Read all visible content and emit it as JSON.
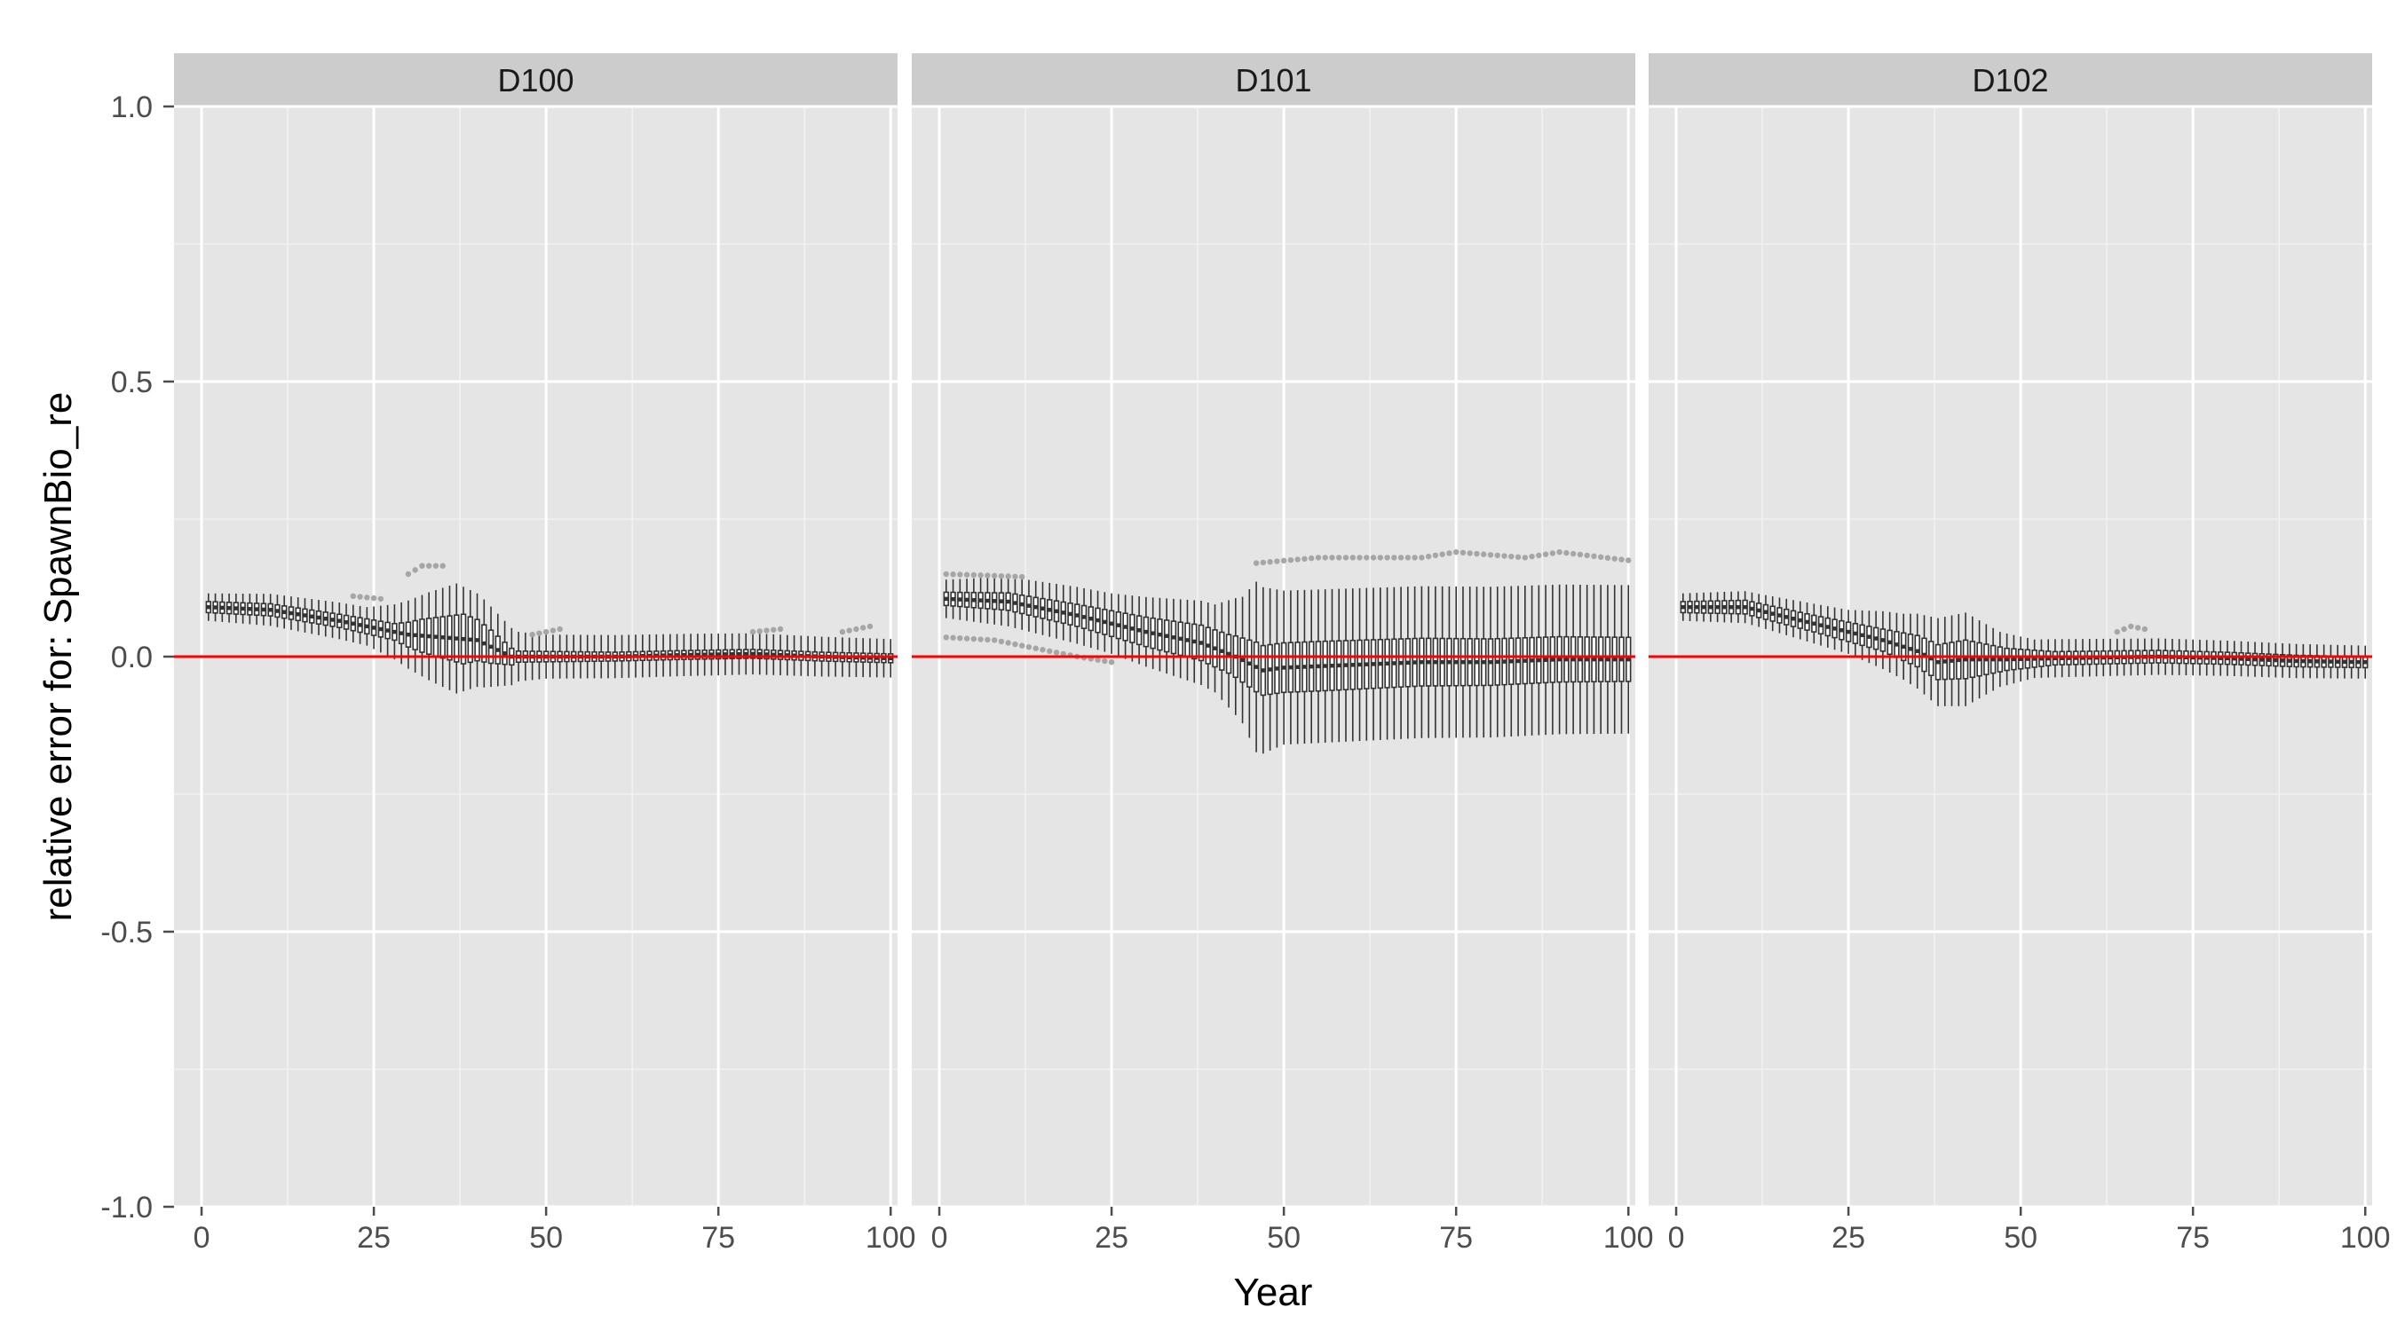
{
  "chart_data": {
    "type": "boxplot",
    "xlabel": "Year",
    "ylabel": "relative error for: SpawnBio_re",
    "ylim": [
      -1.0,
      1.0
    ],
    "y_ticks": [
      "-1.0",
      "-0.5",
      "0.0",
      "0.5",
      "1.0"
    ],
    "y_tick_values": [
      -1.0,
      -0.5,
      0.0,
      0.5,
      1.0
    ],
    "xlim": [
      -4,
      101
    ],
    "x_ticks": [
      "0",
      "25",
      "50",
      "75",
      "100"
    ],
    "x_tick_values": [
      0,
      25,
      50,
      75,
      100
    ],
    "reference_line": {
      "y": 0.0,
      "color": "#ff0000"
    },
    "grid": true,
    "panels": [
      {
        "label": "D100",
        "x_range": [
          1,
          100
        ],
        "median_pts": [
          [
            1,
            0.09
          ],
          [
            10,
            0.085
          ],
          [
            20,
            0.065
          ],
          [
            30,
            0.04
          ],
          [
            35,
            0.035
          ],
          [
            40,
            0.03
          ],
          [
            45,
            0.0
          ],
          [
            50,
            0.0
          ],
          [
            60,
            0.0
          ],
          [
            70,
            0.003
          ],
          [
            80,
            0.005
          ],
          [
            90,
            0.0
          ],
          [
            100,
            -0.003
          ]
        ],
        "q_half_pts": [
          [
            1,
            0.01
          ],
          [
            20,
            0.012
          ],
          [
            28,
            0.015
          ],
          [
            32,
            0.03
          ],
          [
            38,
            0.045
          ],
          [
            42,
            0.03
          ],
          [
            46,
            0.01
          ],
          [
            60,
            0.008
          ],
          [
            100,
            0.008
          ]
        ],
        "w_half_pts": [
          [
            1,
            0.025
          ],
          [
            12,
            0.03
          ],
          [
            24,
            0.035
          ],
          [
            28,
            0.05
          ],
          [
            33,
            0.08
          ],
          [
            37,
            0.1
          ],
          [
            41,
            0.08
          ],
          [
            46,
            0.045
          ],
          [
            50,
            0.04
          ],
          [
            75,
            0.038
          ],
          [
            100,
            0.035
          ]
        ],
        "outliers": [
          {
            "x_range": [
              22,
              26
            ],
            "y_pts": [
              [
                22,
                0.11
              ],
              [
                26,
                0.105
              ]
            ]
          },
          {
            "x_range": [
              30,
              35
            ],
            "y_pts": [
              [
                30,
                0.15
              ],
              [
                32,
                0.165
              ],
              [
                35,
                0.165
              ]
            ]
          },
          {
            "x_range": [
              48,
              52
            ],
            "y_pts": [
              [
                48,
                0.04
              ],
              [
                52,
                0.05
              ]
            ]
          },
          {
            "x_range": [
              80,
              84
            ],
            "y_pts": [
              [
                80,
                0.045
              ],
              [
                84,
                0.05
              ]
            ]
          },
          {
            "x_range": [
              93,
              97
            ],
            "y_pts": [
              [
                93,
                0.045
              ],
              [
                97,
                0.055
              ]
            ]
          }
        ]
      },
      {
        "label": "D101",
        "x_range": [
          1,
          100
        ],
        "median_pts": [
          [
            1,
            0.105
          ],
          [
            10,
            0.1
          ],
          [
            20,
            0.075
          ],
          [
            30,
            0.045
          ],
          [
            38,
            0.025
          ],
          [
            43,
            0.0
          ],
          [
            47,
            -0.025
          ],
          [
            50,
            -0.02
          ],
          [
            60,
            -0.015
          ],
          [
            70,
            -0.01
          ],
          [
            80,
            -0.01
          ],
          [
            90,
            -0.005
          ],
          [
            100,
            -0.005
          ]
        ],
        "q_half_pts": [
          [
            1,
            0.012
          ],
          [
            20,
            0.02
          ],
          [
            35,
            0.03
          ],
          [
            42,
            0.035
          ],
          [
            46,
            0.045
          ],
          [
            55,
            0.045
          ],
          [
            100,
            0.04
          ]
        ],
        "w_half_pts": [
          [
            1,
            0.035
          ],
          [
            10,
            0.045
          ],
          [
            25,
            0.055
          ],
          [
            40,
            0.08
          ],
          [
            44,
            0.115
          ],
          [
            46,
            0.155
          ],
          [
            50,
            0.14
          ],
          [
            100,
            0.135
          ]
        ],
        "outliers": [
          {
            "x_range": [
              1,
              12
            ],
            "y_pts": [
              [
                1,
                0.15
              ],
              [
                6,
                0.148
              ],
              [
                12,
                0.145
              ]
            ]
          },
          {
            "x_range": [
              1,
              25
            ],
            "y_pts": [
              [
                1,
                0.035
              ],
              [
                8,
                0.03
              ],
              [
                14,
                0.015
              ],
              [
                20,
                0.0
              ],
              [
                25,
                -0.01
              ]
            ]
          },
          {
            "x_range": [
              46,
              100
            ],
            "y_pts": [
              [
                46,
                0.17
              ],
              [
                55,
                0.18
              ],
              [
                70,
                0.18
              ],
              [
                75,
                0.19
              ],
              [
                85,
                0.18
              ],
              [
                90,
                0.19
              ],
              [
                100,
                0.175
              ]
            ]
          }
        ]
      },
      {
        "label": "D102",
        "x_range": [
          1,
          100
        ],
        "median_pts": [
          [
            1,
            0.09
          ],
          [
            10,
            0.09
          ],
          [
            20,
            0.06
          ],
          [
            30,
            0.03
          ],
          [
            35,
            0.01
          ],
          [
            38,
            -0.01
          ],
          [
            42,
            -0.005
          ],
          [
            48,
            -0.005
          ],
          [
            55,
            -0.003
          ],
          [
            70,
            0.0
          ],
          [
            80,
            -0.003
          ],
          [
            90,
            -0.008
          ],
          [
            100,
            -0.01
          ]
        ],
        "q_half_pts": [
          [
            1,
            0.01
          ],
          [
            20,
            0.015
          ],
          [
            30,
            0.02
          ],
          [
            36,
            0.03
          ],
          [
            42,
            0.035
          ],
          [
            48,
            0.02
          ],
          [
            55,
            0.012
          ],
          [
            100,
            0.01
          ]
        ],
        "w_half_pts": [
          [
            1,
            0.025
          ],
          [
            12,
            0.03
          ],
          [
            25,
            0.04
          ],
          [
            33,
            0.06
          ],
          [
            38,
            0.08
          ],
          [
            42,
            0.085
          ],
          [
            47,
            0.05
          ],
          [
            52,
            0.035
          ],
          [
            100,
            0.03
          ]
        ],
        "outliers": [
          {
            "x_range": [
              64,
              68
            ],
            "y_pts": [
              [
                64,
                0.045
              ],
              [
                66,
                0.055
              ],
              [
                68,
                0.05
              ]
            ]
          }
        ]
      }
    ]
  }
}
